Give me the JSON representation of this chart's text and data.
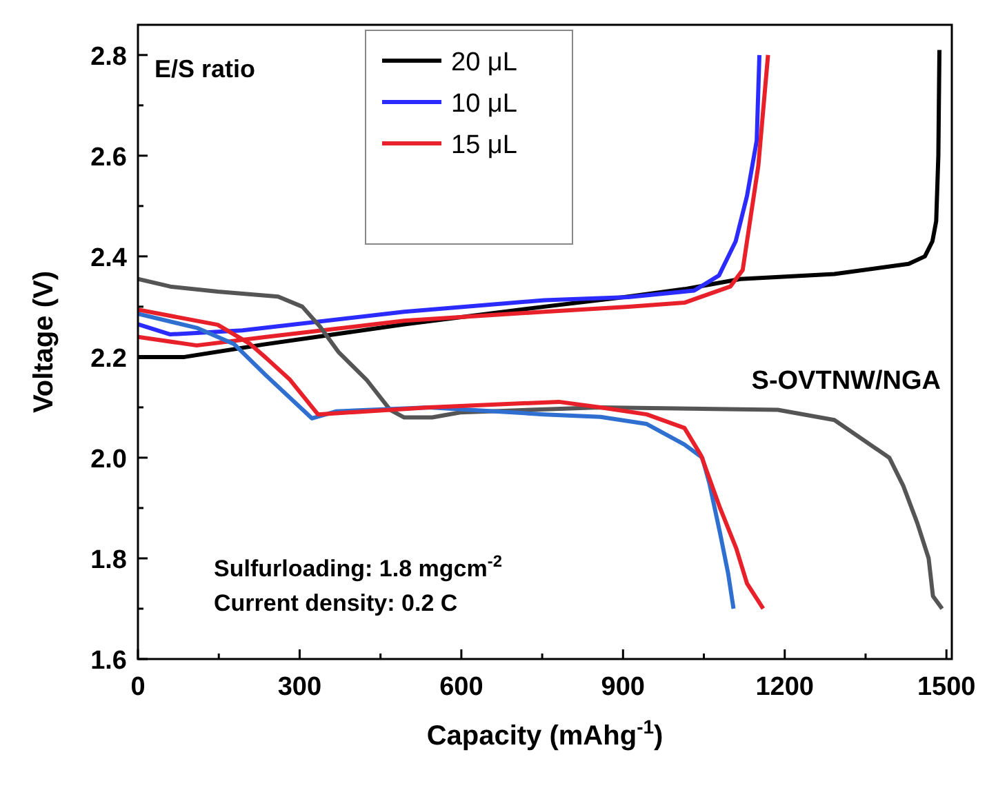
{
  "chart_data": {
    "type": "line",
    "xlabel": "Capacity (mAhg$^{-1}$)",
    "ylabel": "Voltage (V)",
    "legend_title": "E/S ratio",
    "legend": "top",
    "grid": false,
    "line_style": "solid",
    "marker": "none",
    "xlim": [
      0,
      1510
    ],
    "ylim": [
      1.6,
      2.86
    ],
    "xticks": [
      0,
      {
        "value": 150,
        "label": null
      },
      300,
      {
        "value": 450,
        "label": null
      },
      600,
      {
        "value": 750,
        "label": null
      },
      900,
      {
        "value": 1050,
        "label": null
      },
      1200,
      {
        "value": 1350,
        "label": null
      },
      1500
    ],
    "yticks": [
      1.6,
      {
        "value": 1.7,
        "label": null
      },
      1.8,
      {
        "value": 1.9,
        "label": null
      },
      {
        "value": 2,
        "label": "2.0"
      },
      {
        "value": 2.1,
        "label": null
      },
      2.2,
      {
        "value": 2.3,
        "label": null
      },
      2.4,
      {
        "value": 2.5,
        "label": null
      },
      2.6,
      {
        "value": 2.7,
        "label": null
      },
      2.8
    ],
    "series": [
      {
        "name": "20 μL",
        "color": "#000000",
        "x": [
          0,
          86,
          234,
          494,
          754,
          910,
          1014,
          1118,
          1292,
          1430,
          1460,
          1474,
          1481,
          1485,
          1487
        ],
        "values": [
          2.2,
          2.2,
          2.225,
          2.265,
          2.3,
          2.32,
          2.335,
          2.355,
          2.365,
          2.385,
          2.4,
          2.43,
          2.47,
          2.6,
          2.81
        ]
      },
      {
        "name": "10 μL",
        "color": "#2b2bff",
        "x": [
          0,
          60,
          194,
          494,
          754,
          910,
          1032,
          1078,
          1109,
          1130,
          1148,
          1153
        ],
        "values": [
          2.265,
          2.245,
          2.253,
          2.29,
          2.313,
          2.319,
          2.332,
          2.362,
          2.43,
          2.52,
          2.63,
          2.8
        ]
      },
      {
        "name": "15 μL",
        "color": "#e8202a",
        "x": [
          0,
          109,
          238,
          494,
          754,
          910,
          1014,
          1099,
          1122,
          1151,
          1169
        ],
        "values": [
          2.24,
          2.223,
          2.24,
          2.272,
          2.29,
          2.3,
          2.308,
          2.34,
          2.373,
          2.58,
          2.8
        ]
      },
      {
        "color": "#555555",
        "x": [
          0,
          60,
          148,
          260,
          305,
          338,
          372,
          424,
          468,
          494,
          546,
          598,
          857,
          1187,
          1292,
          1394,
          1420,
          1446,
          1467,
          1475,
          1492
        ],
        "values": [
          2.355,
          2.34,
          2.33,
          2.32,
          2.3,
          2.26,
          2.21,
          2.155,
          2.095,
          2.08,
          2.08,
          2.09,
          2.1,
          2.095,
          2.075,
          2,
          1.944,
          1.87,
          1.8,
          1.725,
          1.7
        ]
      },
      {
        "color": "#2f6fd0",
        "x": [
          0,
          109,
          178,
          238,
          323,
          367,
          540,
          754,
          858,
          944,
          1014,
          1047,
          1060,
          1080,
          1095,
          1105
        ],
        "values": [
          2.286,
          2.258,
          2.226,
          2.163,
          2.078,
          2.092,
          2.1,
          2.086,
          2.081,
          2.067,
          2.026,
          2,
          1.95,
          1.85,
          1.77,
          1.7
        ]
      },
      {
        "color": "#e8202a",
        "x": [
          0,
          148,
          208,
          238,
          282,
          334,
          540,
          781,
          858,
          944,
          1014,
          1045,
          1080,
          1110,
          1130,
          1160
        ],
        "values": [
          2.294,
          2.264,
          2.226,
          2.198,
          2.155,
          2.086,
          2.1,
          2.111,
          2.1,
          2.086,
          2.059,
          2.004,
          1.9,
          1.82,
          1.75,
          1.7
        ]
      }
    ],
    "annotations": [
      "S-OVTNW/NGA",
      "Sulfurloading: 1.8 mgcm$^{-2}$",
      "Current density: 0.2 C"
    ]
  }
}
